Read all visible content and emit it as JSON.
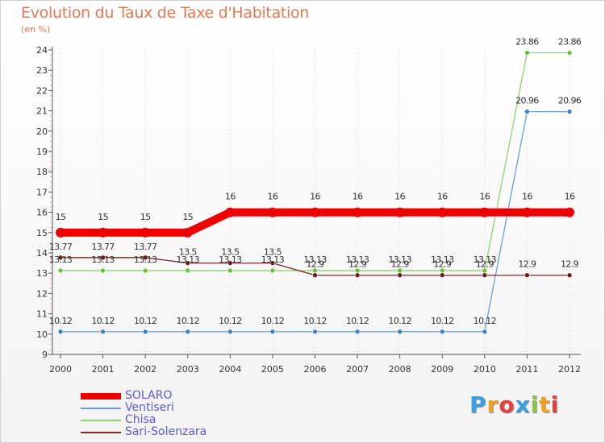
{
  "chart_data": {
    "type": "line",
    "title": "Evolution du Taux de Taxe d'Habitation",
    "ylabel": "(en %)",
    "xlabel": "",
    "categories": [
      "2000",
      "2001",
      "2002",
      "2003",
      "2004",
      "2005",
      "2006",
      "2007",
      "2008",
      "2009",
      "2010",
      "2011",
      "2012"
    ],
    "ylim": [
      9,
      24
    ],
    "yticks": [
      "9",
      "10",
      "11",
      "12",
      "13",
      "14",
      "15",
      "16",
      "17",
      "18",
      "19",
      "20",
      "21",
      "22",
      "23",
      "24"
    ],
    "legend_position": "bottom-left",
    "series": [
      {
        "name": "SOLARO",
        "color": "#ee0000",
        "values": [
          15,
          15,
          15,
          15,
          16,
          16,
          16,
          16,
          16,
          16,
          16,
          16,
          16
        ],
        "labels": [
          "15",
          "15",
          "15",
          "15",
          "16",
          "16",
          "16",
          "16",
          "16",
          "16",
          "16",
          "16",
          "16"
        ]
      },
      {
        "name": "Ventiseri",
        "color": "#6a9ed6",
        "marker_color": "#3f7fc6",
        "values": [
          10.12,
          10.12,
          10.12,
          10.12,
          10.12,
          10.12,
          10.12,
          10.12,
          10.12,
          10.12,
          10.12,
          20.96,
          20.96
        ],
        "labels": [
          "10.12",
          "10.12",
          "10.12",
          "10.12",
          "10.12",
          "10.12",
          "10.12",
          "10.12",
          "10.12",
          "10.12",
          "10.12",
          "20.96",
          "20.96"
        ]
      },
      {
        "name": "Chisa",
        "color": "#8ed46a",
        "marker_color": "#6fbf3f",
        "values": [
          13.13,
          13.13,
          13.13,
          13.13,
          13.13,
          13.13,
          13.13,
          13.13,
          13.13,
          13.13,
          13.13,
          23.86,
          23.86
        ],
        "labels": [
          "13.13",
          "13.13",
          "13.13",
          "13.13",
          "13.13",
          "13.13",
          "13.13",
          "13.13",
          "13.13",
          "13.13",
          "13.13",
          "23.86",
          "23.86"
        ]
      },
      {
        "name": "Sari-Solenzara",
        "color": "#7a2a2a",
        "marker_color": "#6a1f1f",
        "values": [
          13.77,
          13.77,
          13.77,
          13.5,
          13.5,
          13.5,
          12.9,
          12.9,
          12.9,
          12.9,
          12.9,
          12.9,
          12.9
        ],
        "labels": [
          "13.77",
          "13.77",
          "13.77",
          "13.5",
          "13.5",
          "13.5",
          "12.9",
          "12.9",
          "12.9",
          "12.9",
          "12.9",
          "12.9",
          "12.9"
        ]
      }
    ]
  },
  "branding": {
    "logo_text": "Proxiti",
    "logo_colors": [
      "#3aa0e0",
      "#f2a01a",
      "#e8403a",
      "#3aa0e0",
      "#8cc63f",
      "#f2a01a",
      "#e8403a"
    ]
  }
}
